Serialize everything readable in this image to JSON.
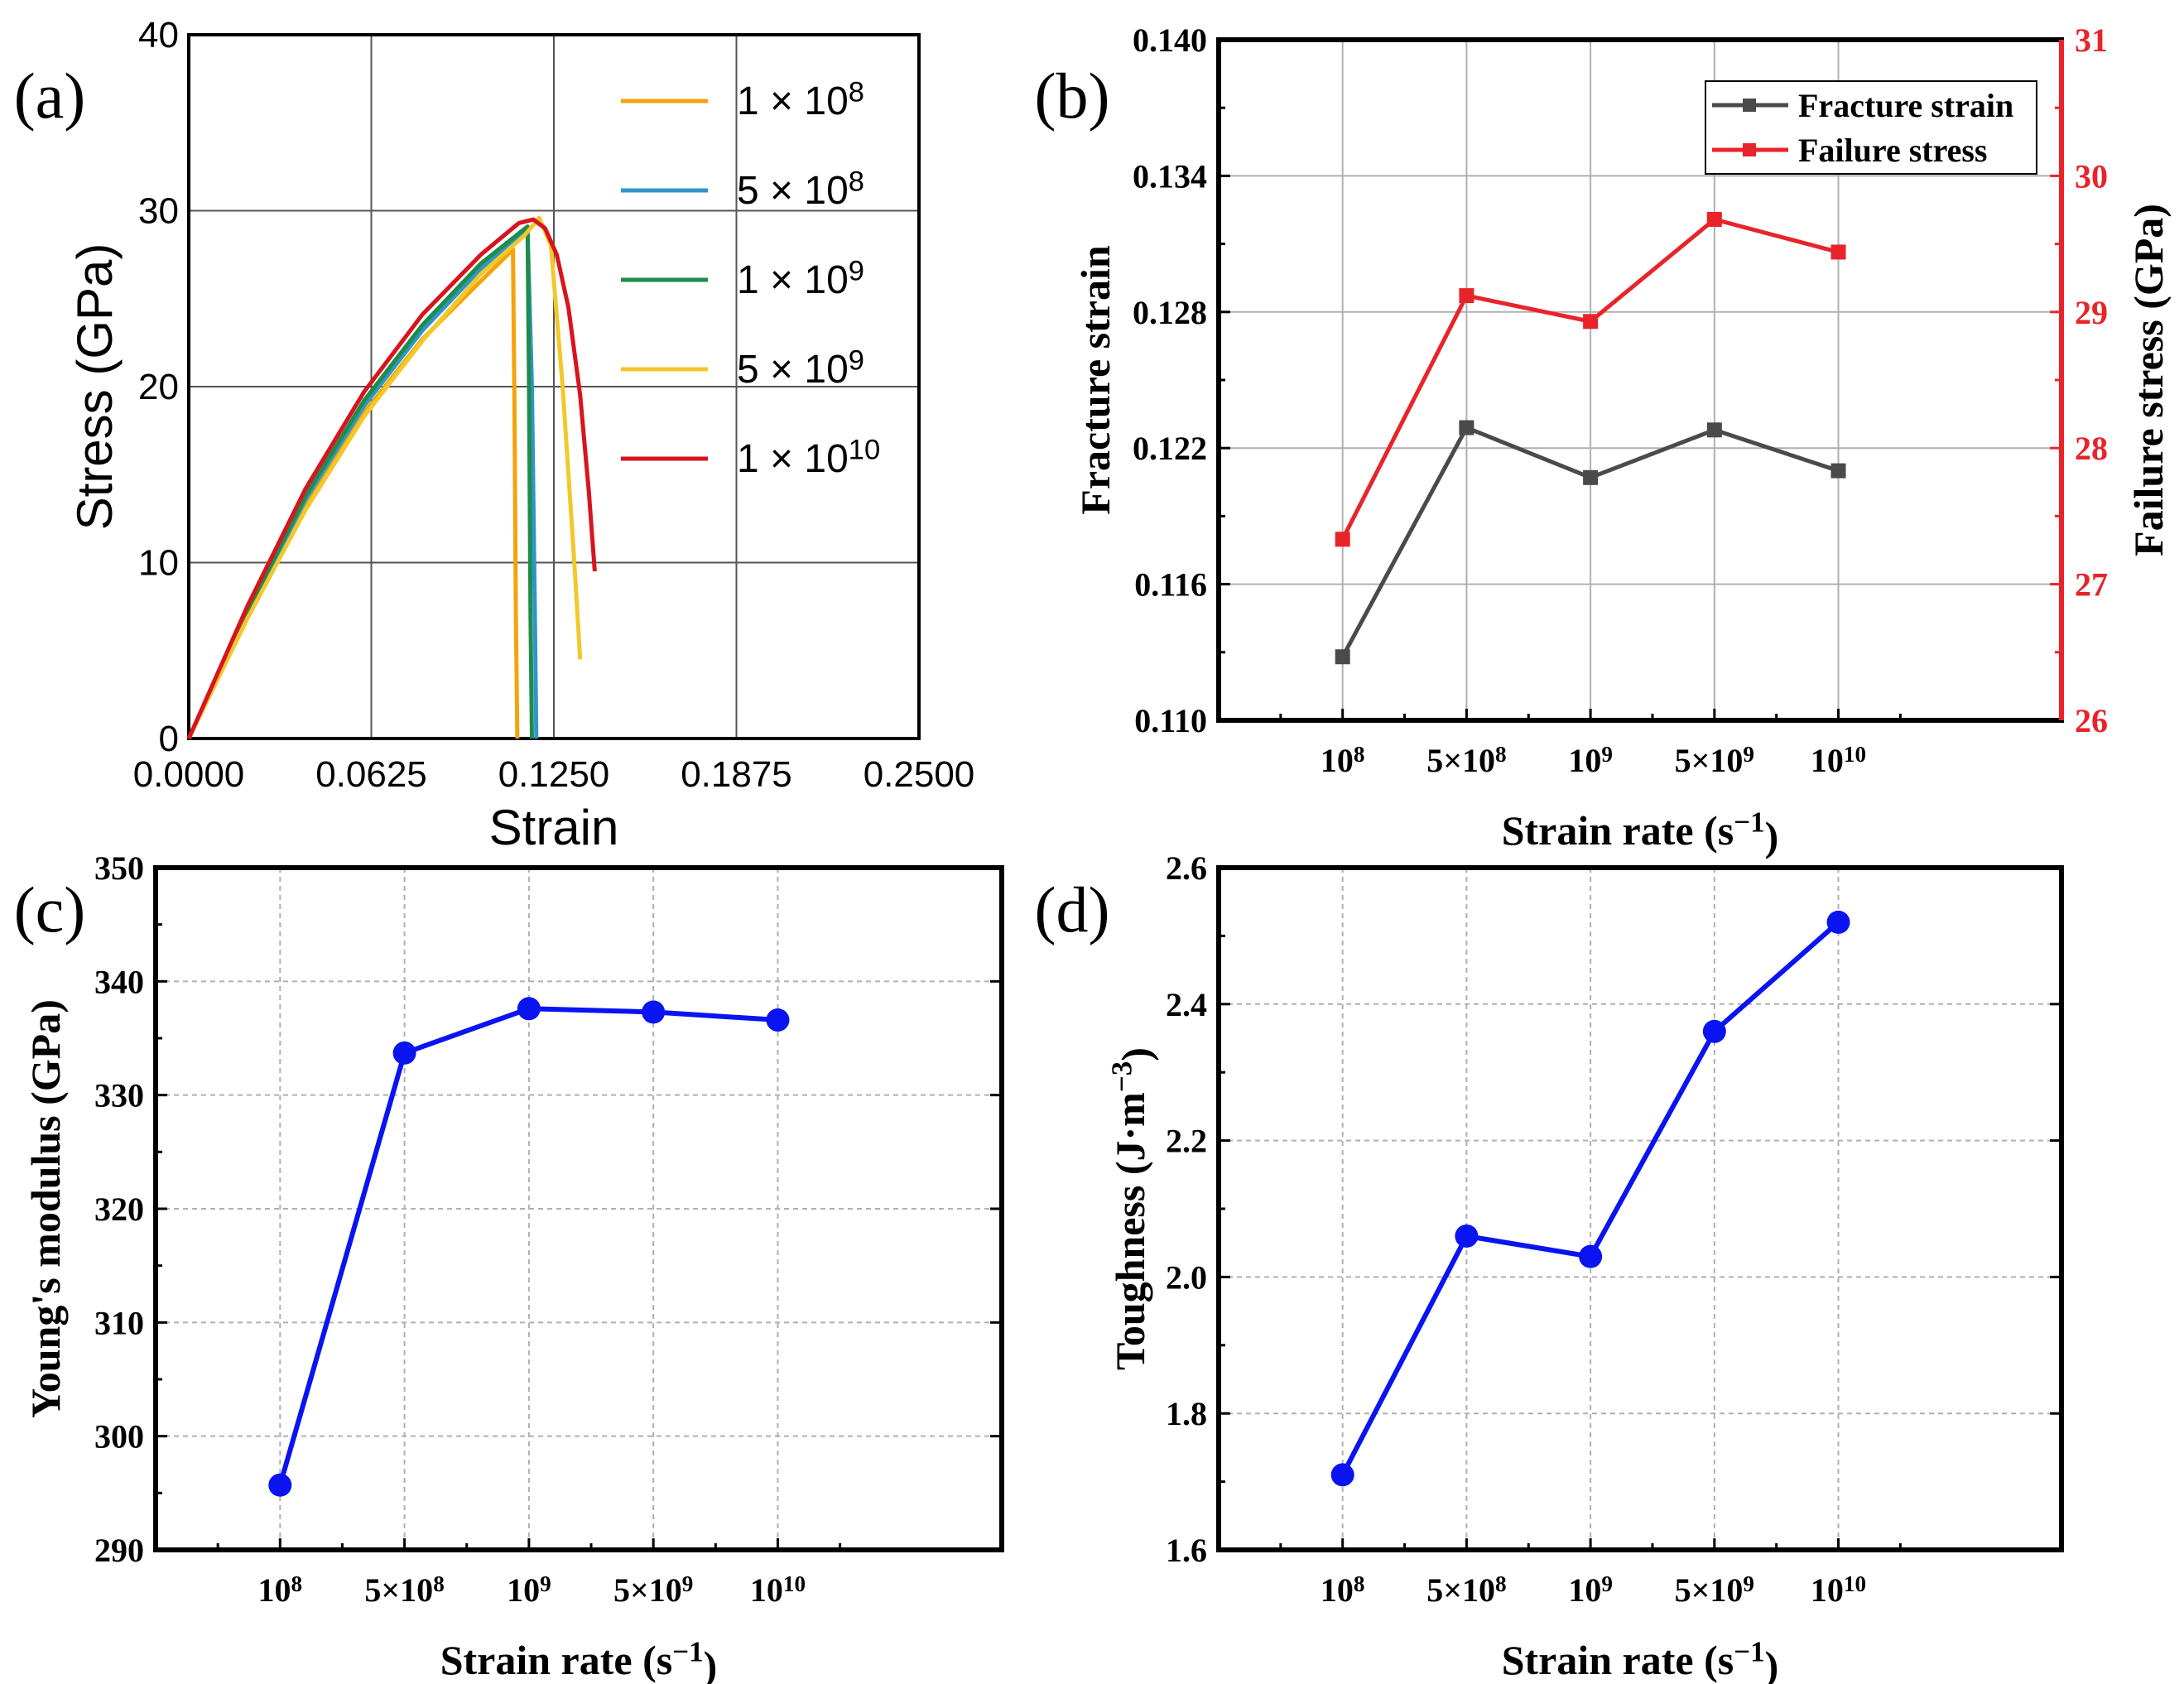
{
  "chart_data": [
    {
      "panel": "(a)",
      "type": "line",
      "xlabel": "Strain",
      "ylabel": "Stress (GPa)",
      "xlim": [
        0,
        0.25
      ],
      "ylim": [
        0,
        40
      ],
      "xticks": [
        "0.0000",
        "0.0625",
        "0.1250",
        "0.1875",
        "0.2500"
      ],
      "yticks": [
        "0",
        "10",
        "20",
        "30",
        "40"
      ],
      "grid": true,
      "legend_position": "top-right",
      "series": [
        {
          "name_base": "1 × 10",
          "name_exp": "8",
          "color": "#F5A30A",
          "points": [
            [
              0,
              0
            ],
            [
              0.02,
              7
            ],
            [
              0.04,
              13.3
            ],
            [
              0.06,
              18.5
            ],
            [
              0.08,
              22.7
            ],
            [
              0.1,
              26
            ],
            [
              0.111,
              27.8
            ],
            [
              0.1115,
              19
            ],
            [
              0.112,
              7
            ],
            [
              0.1125,
              0
            ]
          ]
        },
        {
          "name_base": "5 × 10",
          "name_exp": "8",
          "color": "#2E96C8",
          "points": [
            [
              0,
              0
            ],
            [
              0.02,
              7.1
            ],
            [
              0.04,
              13.6
            ],
            [
              0.06,
              18.9
            ],
            [
              0.08,
              23.2
            ],
            [
              0.1,
              26.7
            ],
            [
              0.116,
              29
            ],
            [
              0.1175,
              20
            ],
            [
              0.1185,
              7
            ],
            [
              0.119,
              0
            ]
          ]
        },
        {
          "name_base": "1 × 10",
          "name_exp": "9",
          "color": "#1E8C4A",
          "points": [
            [
              0,
              0
            ],
            [
              0.02,
              7.2
            ],
            [
              0.04,
              13.8
            ],
            [
              0.06,
              19.2
            ],
            [
              0.08,
              23.5
            ],
            [
              0.1,
              27
            ],
            [
              0.116,
              29.1
            ],
            [
              0.1165,
              20
            ],
            [
              0.117,
              7
            ],
            [
              0.1175,
              0
            ]
          ]
        },
        {
          "name_base": "5 × 10",
          "name_exp": "9",
          "color": "#F2C82A",
          "points": [
            [
              0,
              0
            ],
            [
              0.02,
              6.8
            ],
            [
              0.04,
              13
            ],
            [
              0.06,
              18.3
            ],
            [
              0.08,
              22.6
            ],
            [
              0.1,
              26.4
            ],
            [
              0.115,
              28.6
            ],
            [
              0.12,
              29.6
            ],
            [
              0.124,
              28
            ],
            [
              0.128,
              20
            ],
            [
              0.132,
              10
            ],
            [
              0.134,
              4.5
            ]
          ]
        },
        {
          "name_base": "1 × 10",
          "name_exp": "10",
          "color": "#D8141E",
          "points": [
            [
              0,
              0
            ],
            [
              0.02,
              7.5
            ],
            [
              0.04,
              14.2
            ],
            [
              0.06,
              19.7
            ],
            [
              0.08,
              24.1
            ],
            [
              0.1,
              27.5
            ],
            [
              0.113,
              29.3
            ],
            [
              0.118,
              29.5
            ],
            [
              0.122,
              29
            ],
            [
              0.126,
              27.5
            ],
            [
              0.13,
              24.5
            ],
            [
              0.134,
              19.5
            ],
            [
              0.137,
              14
            ],
            [
              0.139,
              9.5
            ]
          ]
        }
      ]
    },
    {
      "panel": "(b)",
      "type": "line",
      "xlabel_main": "Strain rate (s",
      "xlabel_sup": "−1",
      "xlabel_end": ")",
      "ylabel_left": "Fracture strain",
      "ylabel_right": "Failure stress (GPa)",
      "categories": [
        {
          "base": "10",
          "exp": "8"
        },
        {
          "base": "5×10",
          "exp": "8"
        },
        {
          "base": "10",
          "exp": "9"
        },
        {
          "base": "5×10",
          "exp": "9"
        },
        {
          "base": "10",
          "exp": "10"
        }
      ],
      "ylim_left": [
        0.11,
        0.14
      ],
      "yticks_left": [
        "0.110",
        "0.116",
        "0.122",
        "0.128",
        "0.134",
        "0.140"
      ],
      "ylim_right": [
        26,
        31
      ],
      "yticks_right": [
        "26",
        "27",
        "28",
        "29",
        "30",
        "31"
      ],
      "right_axis_color": "#E8242A",
      "grid": true,
      "legend_position": "top-right",
      "series": [
        {
          "name": "Fracture strain",
          "axis": "left",
          "color": "#4A4A4A",
          "values": [
            0.1128,
            0.1229,
            0.1207,
            0.1228,
            0.121
          ]
        },
        {
          "name": "Failure stress",
          "axis": "right",
          "color": "#E8242A",
          "values": [
            27.33,
            29.12,
            28.93,
            29.68,
            29.44
          ]
        }
      ]
    },
    {
      "panel": "(c)",
      "type": "line",
      "xlabel_main": "Strain rate (s",
      "xlabel_sup": "−1",
      "xlabel_end": ")",
      "ylabel": "Young's modulus (GPa)",
      "categories": [
        {
          "base": "10",
          "exp": "8"
        },
        {
          "base": "5×10",
          "exp": "8"
        },
        {
          "base": "10",
          "exp": "9"
        },
        {
          "base": "5×10",
          "exp": "9"
        },
        {
          "base": "10",
          "exp": "10"
        }
      ],
      "ylim": [
        290,
        350
      ],
      "yticks": [
        "290",
        "300",
        "310",
        "320",
        "330",
        "340",
        "350"
      ],
      "grid": true,
      "color": "#0A14F0",
      "values": [
        295.7,
        333.7,
        337.6,
        337.3,
        336.6
      ]
    },
    {
      "panel": "(d)",
      "type": "line",
      "xlabel_main": "Strain rate (s",
      "xlabel_sup": "−1",
      "xlabel_end": ")",
      "ylabel_main": "Toughness (J·m",
      "ylabel_sup": "−3",
      "ylabel_end": ")",
      "categories": [
        {
          "base": "10",
          "exp": "8"
        },
        {
          "base": "5×10",
          "exp": "8"
        },
        {
          "base": "10",
          "exp": "9"
        },
        {
          "base": "5×10",
          "exp": "9"
        },
        {
          "base": "10",
          "exp": "10"
        }
      ],
      "ylim": [
        1.6,
        2.6
      ],
      "yticks": [
        "1.6",
        "1.8",
        "2.0",
        "2.2",
        "2.4",
        "2.6"
      ],
      "grid": true,
      "color": "#0A14F0",
      "values": [
        1.71,
        2.06,
        2.03,
        2.36,
        2.52
      ]
    }
  ]
}
